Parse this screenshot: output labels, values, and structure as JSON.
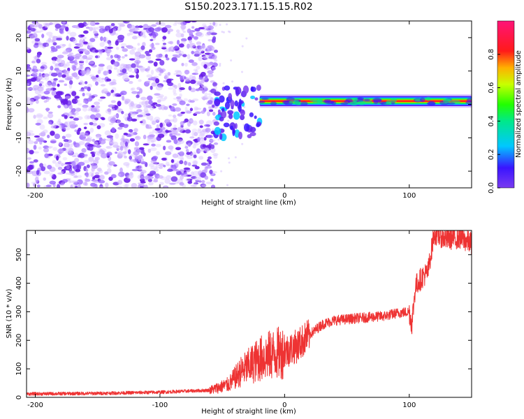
{
  "title": "S150.2023.171.15.15.R02",
  "colors": {
    "snr_line": "#ee3333",
    "spectrum_noise": "#7a3cf0",
    "spectrum_peak": "#ff1a1a",
    "axes": "#000000"
  },
  "chart_data": [
    {
      "type": "heatmap",
      "name": "spectrogram",
      "xlabel": "Height of straight line (km)",
      "ylabel": "Frequency (Hz)",
      "xlim": [
        -207,
        150
      ],
      "ylim": [
        -25,
        25
      ],
      "xticks": [
        -200,
        -100,
        0,
        100
      ],
      "yticks": [
        -20,
        -10,
        0,
        10,
        20
      ],
      "colorbar": {
        "label": "Normalized spectral amplitude",
        "range": [
          0.0,
          1.0
        ],
        "ticks": [
          0.0,
          0.2,
          0.4,
          0.6,
          0.8
        ],
        "colormap": "gist_rainbow_r (purple → blue → cyan → green → yellow → orange → red → magenta)"
      },
      "features": [
        {
          "region": "noise",
          "x_range": [
            -207,
            -55
          ],
          "y_range": [
            -25,
            25
          ],
          "amplitude": "scattered low values (~0.0-0.1)"
        },
        {
          "region": "transition",
          "x_range": [
            -55,
            -20
          ],
          "y_range": [
            -10,
            5
          ],
          "amplitude": "patchy ~0.1-0.3"
        },
        {
          "region": "signal band",
          "x_range": [
            -20,
            150
          ],
          "y_center": 1,
          "y_width": 2,
          "amplitude": "peak ~0.9 near 0 Hz"
        }
      ]
    },
    {
      "type": "line",
      "name": "snr",
      "xlabel": "Height of straight line (km)",
      "ylabel": "SNR (10 * v/v)",
      "xlim": [
        -207,
        150
      ],
      "ylim": [
        0,
        585
      ],
      "xticks": [
        -200,
        -100,
        0,
        100
      ],
      "yticks": [
        0,
        100,
        200,
        300,
        400,
        500
      ],
      "x": [
        -207,
        -150,
        -100,
        -60,
        -45,
        -35,
        -25,
        -20,
        -10,
        0,
        10,
        20,
        30,
        40,
        60,
        80,
        90,
        100,
        102,
        105,
        110,
        115,
        120,
        130,
        140,
        150
      ],
      "y": [
        12,
        14,
        18,
        25,
        45,
        90,
        120,
        135,
        150,
        160,
        180,
        220,
        255,
        270,
        278,
        285,
        295,
        300,
        255,
        390,
        420,
        440,
        575,
        555,
        560,
        540
      ]
    }
  ]
}
